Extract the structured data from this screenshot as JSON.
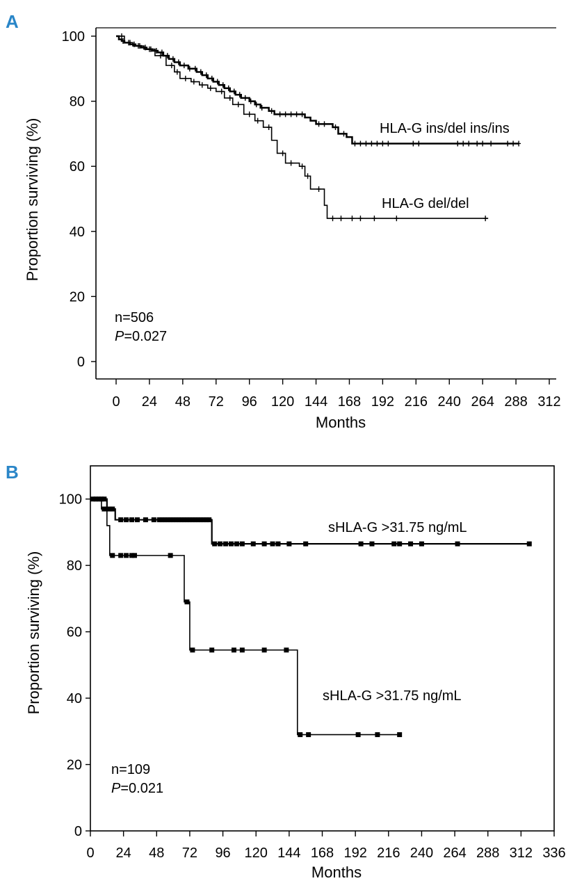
{
  "chart_data": [
    {
      "panel": "A",
      "type": "line",
      "subtype": "kaplan-meier",
      "title": "",
      "xlabel": "Months",
      "ylabel": "Proportion surviving (%)",
      "xlim": [
        0,
        312
      ],
      "ylim": [
        0,
        100
      ],
      "xticks": [
        "0",
        "24",
        "48",
        "72",
        "96",
        "120",
        "144",
        "168",
        "192",
        "216",
        "240",
        "264",
        "288",
        "312"
      ],
      "yticks": [
        "0",
        "20",
        "40",
        "60",
        "80",
        "100"
      ],
      "frame": "open",
      "annotation_n": "n=506",
      "annotation_p_label": "P",
      "annotation_p_value": "=0.027",
      "series": [
        {
          "name": "HLA-G ins/del ins/ins",
          "marker_style": "plus",
          "line_width": 2.5,
          "steps": [
            [
              0,
              100
            ],
            [
              2,
              99
            ],
            [
              4,
              98.5
            ],
            [
              6,
              98
            ],
            [
              10,
              97.5
            ],
            [
              14,
              97
            ],
            [
              18,
              96.5
            ],
            [
              22,
              96
            ],
            [
              26,
              95.5
            ],
            [
              30,
              95
            ],
            [
              34,
              94
            ],
            [
              38,
              93
            ],
            [
              42,
              92
            ],
            [
              46,
              91
            ],
            [
              52,
              90
            ],
            [
              58,
              89
            ],
            [
              62,
              88
            ],
            [
              66,
              87
            ],
            [
              70,
              86
            ],
            [
              74,
              85
            ],
            [
              78,
              84
            ],
            [
              82,
              83
            ],
            [
              86,
              82
            ],
            [
              90,
              81
            ],
            [
              96,
              80
            ],
            [
              100,
              79
            ],
            [
              104,
              78
            ],
            [
              110,
              77
            ],
            [
              114,
              76
            ],
            [
              132,
              76
            ],
            [
              136,
              75
            ],
            [
              140,
              74
            ],
            [
              144,
              73
            ],
            [
              152,
              73
            ],
            [
              156,
              72
            ],
            [
              160,
              70
            ],
            [
              166,
              69
            ],
            [
              170,
              67
            ],
            [
              290,
              67
            ]
          ],
          "censor_x": [
            5,
            9,
            13,
            17,
            21,
            25,
            29,
            33,
            37,
            41,
            45,
            49,
            53,
            57,
            61,
            65,
            69,
            73,
            77,
            81,
            85,
            89,
            93,
            97,
            101,
            105,
            112,
            118,
            122,
            126,
            130,
            134,
            146,
            150,
            158,
            164,
            172,
            176,
            180,
            184,
            188,
            192,
            196,
            214,
            218,
            246,
            250,
            254,
            260,
            264,
            270,
            282,
            286,
            290
          ]
        },
        {
          "name": "HLA-G del/del",
          "marker_style": "plus",
          "line_width": 1.6,
          "steps": [
            [
              0,
              100
            ],
            [
              6,
              98
            ],
            [
              12,
              97
            ],
            [
              20,
              96
            ],
            [
              28,
              94
            ],
            [
              36,
              91
            ],
            [
              42,
              89
            ],
            [
              46,
              87
            ],
            [
              54,
              86
            ],
            [
              60,
              85
            ],
            [
              66,
              84
            ],
            [
              72,
              83
            ],
            [
              78,
              81
            ],
            [
              84,
              79
            ],
            [
              92,
              76
            ],
            [
              100,
              74
            ],
            [
              106,
              72
            ],
            [
              112,
              68
            ],
            [
              116,
              64
            ],
            [
              122,
              61
            ],
            [
              132,
              60
            ],
            [
              136,
              57
            ],
            [
              140,
              53
            ],
            [
              150,
              48
            ],
            [
              152,
              44
            ],
            [
              268,
              44
            ]
          ],
          "censor_x": [
            4,
            10,
            16,
            24,
            32,
            40,
            44,
            50,
            56,
            62,
            68,
            76,
            82,
            88,
            96,
            102,
            110,
            120,
            126,
            134,
            138,
            146,
            156,
            162,
            170,
            176,
            186,
            202,
            266
          ]
        }
      ],
      "labels": [
        {
          "text": "HLA-G ins/del ins/ins",
          "series": 0
        },
        {
          "text": "HLA-G del/del",
          "series": 1
        }
      ]
    },
    {
      "panel": "B",
      "type": "line",
      "subtype": "kaplan-meier",
      "title": "",
      "xlabel": "Months",
      "ylabel": "Proportion surviving (%)",
      "xlim": [
        0,
        336
      ],
      "ylim": [
        0,
        110
      ],
      "xticks": [
        "0",
        "24",
        "48",
        "72",
        "96",
        "120",
        "144",
        "168",
        "192",
        "216",
        "240",
        "264",
        "288",
        "312",
        "336"
      ],
      "yticks": [
        "0",
        "20",
        "40",
        "60",
        "80",
        "100"
      ],
      "frame": "box",
      "annotation_n": "n=109",
      "annotation_p_label": "P",
      "annotation_p_value": "=0.021",
      "series": [
        {
          "name": "sHLA-G >31.75 ng/mL",
          "marker_style": "square",
          "line_width": 2.2,
          "steps": [
            [
              0,
              100
            ],
            [
              12,
              100
            ],
            [
              12,
              97
            ],
            [
              18,
              97
            ],
            [
              18,
              93.75
            ],
            [
              88,
              93.75
            ],
            [
              88,
              86.5
            ],
            [
              318,
              86.5
            ]
          ],
          "censor_x": [
            2,
            4,
            6,
            8,
            10,
            14,
            16,
            22,
            26,
            30,
            34,
            40,
            46,
            50,
            52,
            54,
            56,
            58,
            60,
            62,
            64,
            66,
            68,
            70,
            72,
            74,
            76,
            78,
            80,
            82,
            84,
            86,
            90,
            94,
            98,
            102,
            106,
            110,
            118,
            126,
            132,
            136,
            144,
            156,
            196,
            204,
            220,
            224,
            232,
            240,
            266,
            318
          ]
        },
        {
          "name": "sHLA-G >31.75 ng/mL",
          "marker_style": "square",
          "line_width": 1.6,
          "steps": [
            [
              0,
              100
            ],
            [
              8,
              100
            ],
            [
              8,
              97
            ],
            [
              12,
              97
            ],
            [
              12,
              92
            ],
            [
              14,
              92
            ],
            [
              14,
              83
            ],
            [
              68,
              83
            ],
            [
              68,
              69
            ],
            [
              72,
              69
            ],
            [
              72,
              54.5
            ],
            [
              150,
              54.5
            ],
            [
              150,
              29
            ],
            [
              224,
              29
            ]
          ],
          "censor_x": [
            10,
            16,
            22,
            26,
            30,
            32,
            58,
            70,
            74,
            88,
            104,
            110,
            126,
            142,
            152,
            158,
            194,
            208,
            224
          ]
        }
      ],
      "labels": [
        {
          "text": "sHLA-G >31.75 ng/mL",
          "series": 0
        },
        {
          "text": "sHLA-G >31.75 ng/mL",
          "series": 1
        }
      ]
    }
  ]
}
